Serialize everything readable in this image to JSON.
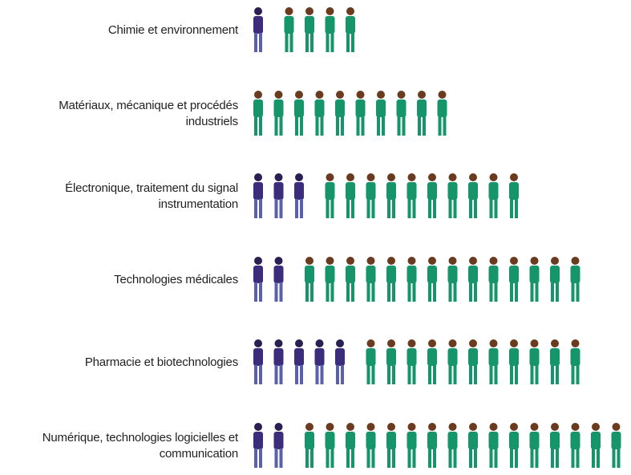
{
  "chart_data": {
    "type": "pictogram",
    "categories": [
      "Chimie et environnement",
      "Matériaux, mécanique et procédés industriels",
      "Électronique, traitement du signal instrumentation",
      "Technologies médicales",
      "Pharmacie et biotechnologies",
      "Numérique, technologies logicielles et communication"
    ],
    "series": [
      {
        "color": "#3b2d7c",
        "values": [
          1,
          0,
          3,
          2,
          5,
          2
        ]
      },
      {
        "color": "#16956a",
        "values": [
          4,
          10,
          10,
          14,
          11,
          16
        ]
      }
    ]
  }
}
